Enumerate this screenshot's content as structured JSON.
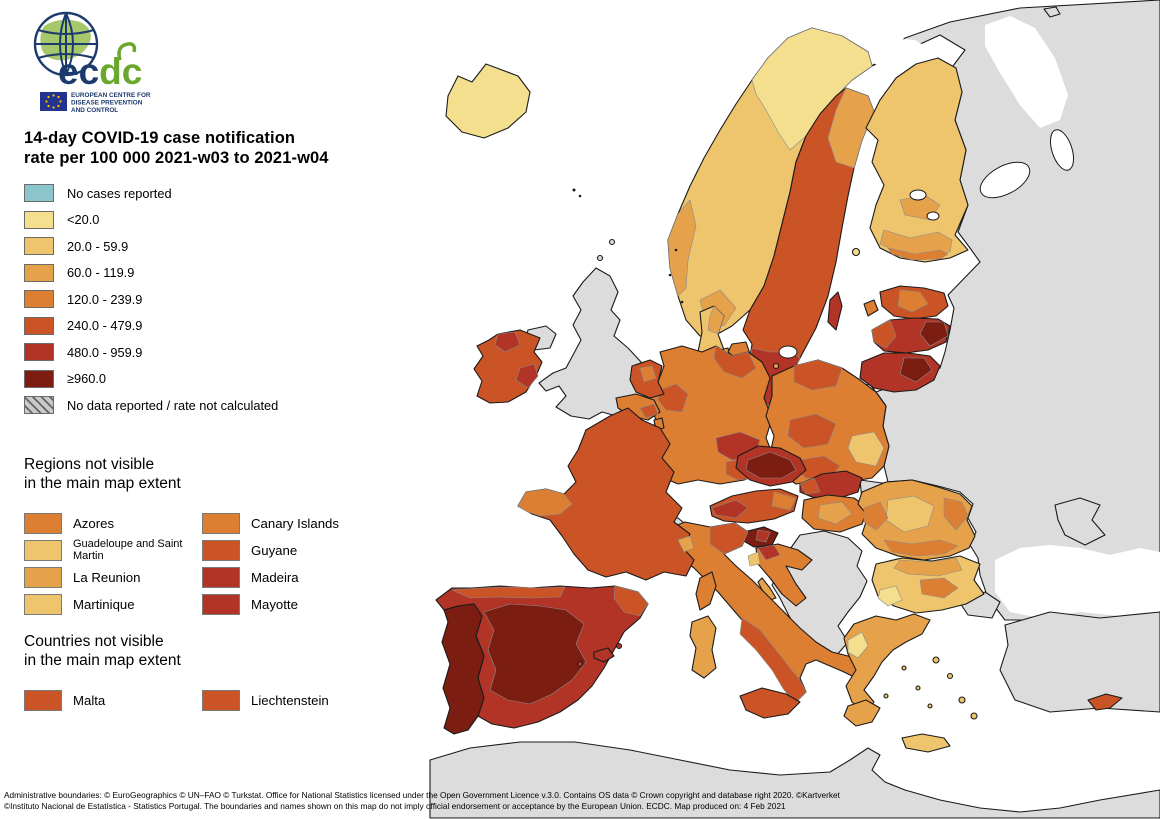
{
  "logo": {
    "brand_blue": "ec",
    "brand_green": "dc",
    "subtitle_lines": [
      "EUROPEAN CENTRE FOR",
      "DISEASE PREVENTION",
      "AND CONTROL"
    ]
  },
  "title": {
    "line1": "14-day COVID-19 case notification",
    "line2": "rate per 100 000 2021-w03 to 2021-w04"
  },
  "legend": {
    "items": [
      {
        "label": "No cases reported",
        "color": "#8cc6cc"
      },
      {
        "label": "<20.0",
        "color": "#f3df8e"
      },
      {
        "label": "20.0 - 59.9",
        "color": "#eec56d"
      },
      {
        "label": "60.0 - 119.9",
        "color": "#e6a14b"
      },
      {
        "label": "120.0 - 239.9",
        "color": "#dc7f33"
      },
      {
        "label": "240.0 - 479.9",
        "color": "#cb5426"
      },
      {
        "label": "480.0 - 959.9",
        "color": "#b23427"
      },
      {
        "label": "≥960.0",
        "color": "#7c1d12"
      },
      {
        "label": "No data reported / rate not calculated",
        "pattern": "hatch"
      }
    ]
  },
  "regions_not_visible": {
    "heading_line1": "Regions not visible",
    "heading_line2": "in the main map extent",
    "items": [
      {
        "label": "Azores",
        "color": "#dc7f33"
      },
      {
        "label": "Canary Islands",
        "color": "#dc7f33"
      },
      {
        "label": "Guadeloupe and Saint Martin",
        "color": "#eec56d"
      },
      {
        "label": "Guyane",
        "color": "#cb5426"
      },
      {
        "label": "La Reunion",
        "color": "#e6a14b"
      },
      {
        "label": "Madeira",
        "color": "#b23427"
      },
      {
        "label": "Martinique",
        "color": "#eec56d"
      },
      {
        "label": "Mayotte",
        "color": "#b23427"
      }
    ]
  },
  "countries_not_visible": {
    "heading_line1": "Countries not visible",
    "heading_line2": "in the main map extent",
    "items": [
      {
        "label": "Malta",
        "color": "#cb5426"
      },
      {
        "label": "Liechtenstein",
        "color": "#cb5426"
      }
    ]
  },
  "footer": {
    "line1": "Administrative boundaries: © EuroGeographics © UN–FAO © Turkstat. Office for National Statistics licensed under the Open Government Licence v.3.0. Contains OS data © Crown copyright and database right 2020. ©Kartverket",
    "line2": "©Instituto Nacional de Estatística - Statistics Portugal. The boundaries and names shown on this map do not imply official endorsement or acceptance by the European Union. ECDC. Map produced on: 4 Feb 2021"
  },
  "map": {
    "sea_color": "#ffffff",
    "no_data_color": "#dcdcdc",
    "border_color": "#1a1a1a",
    "region_colors": {
      "east_block": "#dcdcdc",
      "uk": "#dcdcdc",
      "n_ireland": "#dcdcdc",
      "switzerland": "#dcdcdc",
      "balkans": "#dcdcdc",
      "turkey": "#dcdcdc",
      "turkey_eu": "#dcdcdc",
      "africa": "#dcdcdc",
      "crimea": "#dcdcdc",
      "kaliningrad": "#dcdcdc",
      "zakarpattia": "#dcdcdc",
      "svalbard_frag": "#dcdcdc",
      "iceland": "#f3df8e",
      "norway": "#eec56d",
      "norway_north": "#f3df8e",
      "norway_oslo": "#e6a14b",
      "norway_west": "#e6a14b",
      "sweden": "#cb5426",
      "sweden_north": "#e6a14b",
      "sweden_south": "#b23427",
      "gotland": "#b23427",
      "finland": "#eec56d",
      "finland_mid": "#e6a14b",
      "finland_south": "#e6a14b",
      "finland_coast": "#dc7f33",
      "aland": "#f3df8e",
      "denmark": "#eec56d",
      "denmark_east": "#e6a14b",
      "zealand": "#dc7f33",
      "fyn": "#e6a14b",
      "bornholm": "#e6a14b",
      "estonia": "#cb5426",
      "estonia_patch": "#dc7f33",
      "saaremaa": "#dc7f33",
      "latvia": "#b23427",
      "latvia_west": "#cb5426",
      "latvia_east": "#7c1d12",
      "lithuania": "#b23427",
      "lithuania_east": "#7c1d12",
      "ireland": "#cb5426",
      "ireland_nw": "#b23427",
      "ireland_se": "#b23427",
      "netherlands": "#cb5426",
      "netherlands_patch": "#dc7f33",
      "belgium": "#dc7f33",
      "belgium_south": "#cb5426",
      "luxembourg": "#dc7f33",
      "germany": "#dc7f33",
      "germany_nw": "#cb5426",
      "germany_ne": "#cb5426",
      "germany_saxony": "#b23427",
      "germany_se": "#cb5426",
      "poland": "#dc7f33",
      "poland_north": "#cb5426",
      "poland_center": "#cb5426",
      "poland_se": "#eec56d",
      "poland_south": "#cb5426",
      "czech": "#b23427",
      "czech_core": "#7c1d12",
      "slovakia": "#b23427",
      "slovakia_west": "#cb5426",
      "austria": "#cb5426",
      "austria_tyrol": "#b23427",
      "austria_east": "#dc7f33",
      "hungary": "#dc7f33",
      "hungary_patch": "#e6a14b",
      "slovenia": "#7c1d12",
      "slovenia_patch": "#b23427",
      "croatia": "#dc7f33",
      "croatia_north": "#b23427",
      "croatia_istria": "#eec56d",
      "croatia_isles": "#e6a14b",
      "italy": "#dc7f33",
      "italy_ne": "#cb5426",
      "italy_south": "#cb5426",
      "sicily": "#cb5426",
      "sardinia": "#e6a14b",
      "corsica": "#dc7f33",
      "france": "#cb5426",
      "france_brittany": "#dc7f33",
      "france_alps": "#e6a14b",
      "spain": "#b23427",
      "spain_center": "#7c1d12",
      "spain_north": "#cb5426",
      "spain_catalonia": "#cb5426",
      "mallorca": "#b23427",
      "menorca": "#b23427",
      "ibiza": "#b23427",
      "portugal": "#7c1d12",
      "greece": "#e6a14b",
      "peloponnese": "#e6a14b",
      "greece_west": "#f3df8e",
      "crete": "#eec56d",
      "gr_isles": "#eec56d",
      "bulgaria": "#eec56d",
      "bulgaria_north": "#e6a14b",
      "bulgaria_center": "#dc7f33",
      "bulgaria_sw": "#f3df8e",
      "romania": "#e6a14b",
      "romania_center": "#eec56d",
      "romania_south": "#dc7f33",
      "romania_east": "#dc7f33",
      "romania_west": "#dc7f33",
      "cyprus": "#cb5426"
    }
  }
}
